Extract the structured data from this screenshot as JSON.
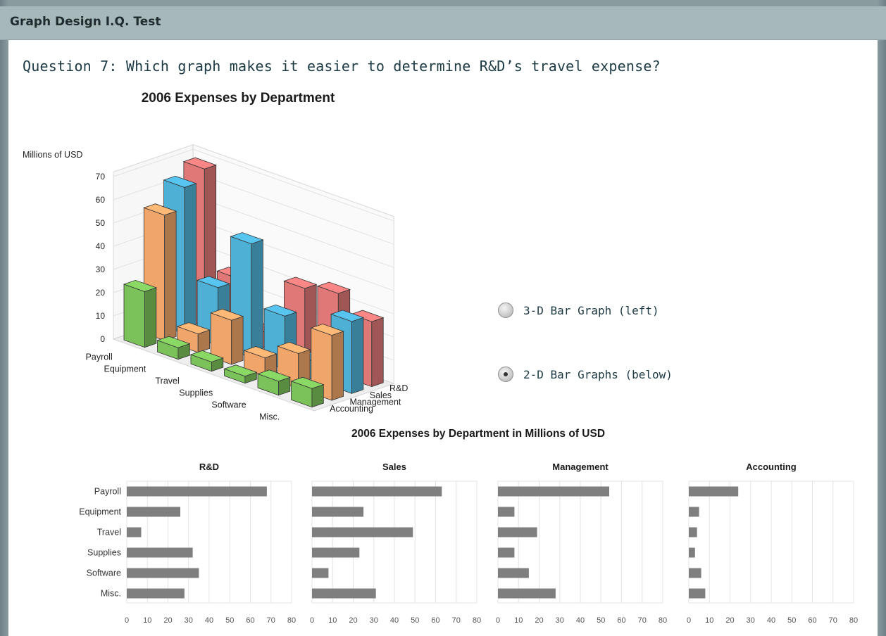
{
  "header": {
    "title": "Graph Design I.Q. Test"
  },
  "question": "Question 7: Which graph makes it easier to determine R&D’s travel expense?",
  "options": [
    {
      "label": "3-D Bar Graph (left)",
      "selected": false
    },
    {
      "label": "2-D Bar Graphs (below)",
      "selected": true
    }
  ],
  "colors": {
    "rd": "#e07878",
    "sales": "#4fb0d6",
    "management": "#f0a56a",
    "accounting": "#7cc25a",
    "bar2d": "#7f7f7f"
  },
  "chart_data": [
    {
      "type": "bar",
      "title": "2006 Expenses by Department",
      "zlabel": "Millions of USD",
      "zlim": [
        0,
        70
      ],
      "zticks": [
        "0",
        "10",
        "20",
        "30",
        "40",
        "50",
        "60",
        "70"
      ],
      "categories": [
        "Payroll",
        "Equipment",
        "Travel",
        "Supplies",
        "Software",
        "Misc."
      ],
      "series": [
        {
          "name": "R&D",
          "values": [
            68,
            26,
            7,
            32,
            35,
            28
          ]
        },
        {
          "name": "Sales",
          "values": [
            63,
            25,
            49,
            23,
            8,
            31
          ]
        },
        {
          "name": "Management",
          "values": [
            54,
            8,
            19,
            8,
            15,
            28
          ]
        },
        {
          "name": "Accounting",
          "values": [
            24,
            5,
            4,
            3,
            6,
            8
          ]
        }
      ],
      "style": "3d"
    },
    {
      "type": "bar",
      "orientation": "horizontal",
      "title": "2006 Expenses by Department in Millions of USD",
      "categories": [
        "Payroll",
        "Equipment",
        "Travel",
        "Supplies",
        "Software",
        "Misc."
      ],
      "xlim": [
        0,
        80
      ],
      "xticks": [
        "0",
        "10",
        "20",
        "30",
        "40",
        "50",
        "60",
        "70",
        "80"
      ],
      "panels": [
        {
          "name": "R&D",
          "values": [
            68,
            26,
            7,
            32,
            35,
            28
          ]
        },
        {
          "name": "Sales",
          "values": [
            63,
            25,
            49,
            23,
            8,
            31
          ]
        },
        {
          "name": "Management",
          "values": [
            54,
            8,
            19,
            8,
            15,
            28
          ]
        },
        {
          "name": "Accounting",
          "values": [
            24,
            5,
            4,
            3,
            6,
            8
          ]
        }
      ],
      "grid": true
    }
  ]
}
